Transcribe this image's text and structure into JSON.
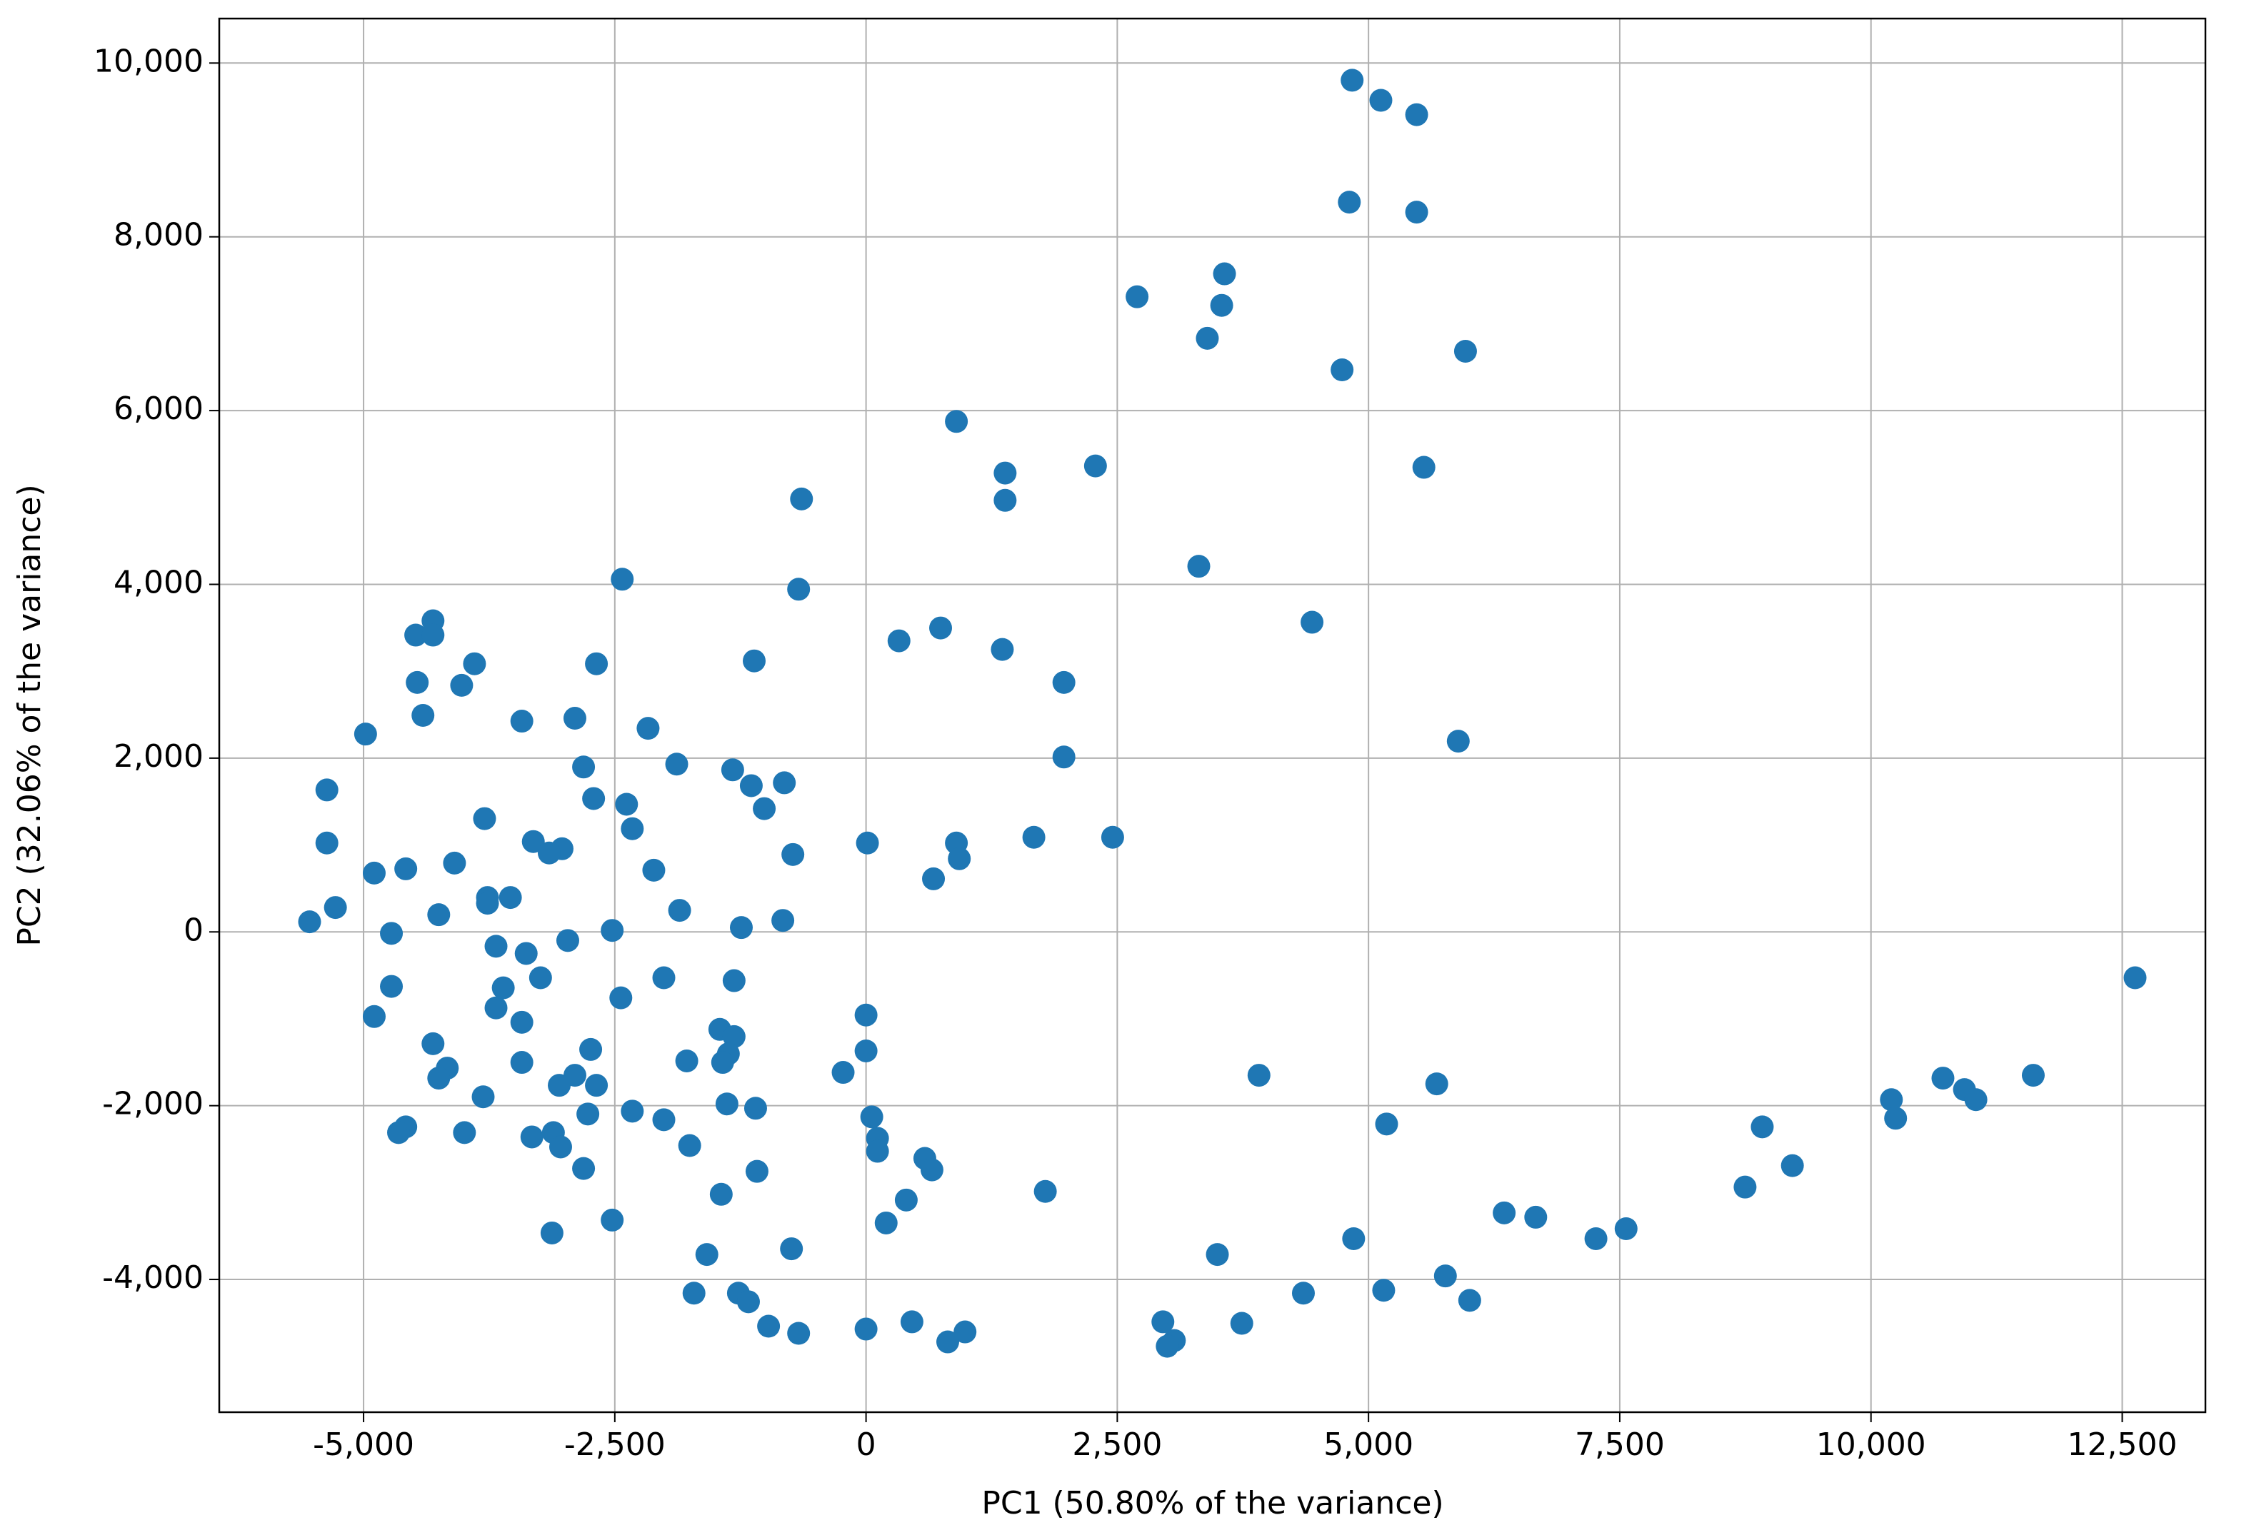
{
  "chart_data": {
    "type": "scatter",
    "x_label": "PC1 (50.80% of the variance)",
    "y_label": "PC2 (32.06% of the variance)",
    "color": "#1f77b4",
    "grid": true,
    "xlim": [
      -6436,
      13328
    ],
    "ylim": [
      -5528,
      10512
    ],
    "xticks": [
      {
        "value": -5000,
        "label": "-5,000"
      },
      {
        "value": -2500,
        "label": "-2,500"
      },
      0,
      {
        "value": 2500,
        "label": "2,500"
      },
      {
        "value": 5000,
        "label": "5,000"
      },
      {
        "value": 7500,
        "label": "7,500"
      },
      {
        "value": 10000,
        "label": "10,000"
      },
      {
        "value": 12500,
        "label": "12,500"
      }
    ],
    "yticks": [
      {
        "value": -4000,
        "label": "-4,000"
      },
      {
        "value": -2000,
        "label": "-2,000"
      },
      0,
      {
        "value": 2000,
        "label": "2,000"
      },
      {
        "value": 4000,
        "label": "4,000"
      },
      {
        "value": 6000,
        "label": "6,000"
      },
      {
        "value": 8000,
        "label": "8,000"
      },
      {
        "value": 10000,
        "label": "10,000"
      }
    ],
    "x": [
      4837,
      5123,
      5479,
      4809,
      5479,
      3567,
      2697,
      3539,
      3396,
      5965,
      4737,
      899,
      1384,
      2283,
      5551,
      1384,
      -642,
      3311,
      -2426,
      -671,
      4438,
      -4309,
      -4481,
      -4309,
      742,
      328,
      1356,
      -1113,
      -2683,
      -3896,
      -4466,
      -4024,
      1969,
      -4409,
      -2897,
      -3425,
      -4980,
      -2169,
      5893,
      1969,
      -1884,
      -2811,
      -1327,
      -813,
      -1142,
      -5365,
      -2711,
      -2383,
      -1013,
      -3796,
      -2326,
      1670,
      2454,
      -5365,
      -3311,
      14,
      899,
      -3025,
      -3153,
      -728,
      928,
      -4095,
      -4580,
      -4894,
      -2112,
      671,
      -3767,
      -3539,
      -3767,
      -5280,
      -1855,
      -4252,
      -5537,
      -828,
      -1241,
      -2526,
      -4723,
      -3682,
      -3382,
      -2968,
      -3239,
      -2012,
      -1313,
      -4723,
      -3610,
      -2440,
      -3682,
      -4894,
      0,
      -3425,
      -1455,
      -1313,
      -4309,
      -2740,
      0,
      -1370,
      -1784,
      -3425,
      -1427,
      -4167,
      -4252,
      -2897,
      -228,
      3910,
      5679,
      -3053,
      -2683,
      -3810,
      -1384,
      -1099,
      -2768,
      -2326,
      57,
      -2012,
      5180,
      8918,
      -4580,
      -4652,
      -3996,
      114,
      -3111,
      -3325,
      -3039,
      -1755,
      114,
      585,
      656,
      9218,
      -2811,
      -1085,
      8747,
      1784,
      -1441,
      400,
      6350,
      6664,
      200,
      -2526,
      7563,
      -3125,
      7263,
      4852,
      -742,
      -1584,
      3496,
      5765,
      -1712,
      4352,
      5151,
      -1270,
      6007,
      -1170,
      2954,
      457,
      3739,
      -970,
      0,
      985,
      -671,
      3068,
      813,
      2997,
      10203,
      10245,
      10716,
      10930,
      11044,
      11615,
      12628
    ],
    "values": [
      9802,
      9571,
      9406,
      8399,
      8284,
      7574,
      7310,
      7211,
      6832,
      6683,
      6469,
      5875,
      5281,
      5363,
      5347,
      4967,
      4983,
      4208,
      4059,
      3944,
      3564,
      3581,
      3416,
      3416,
      3498,
      3350,
      3251,
      3119,
      3086,
      3086,
      2871,
      2838,
      2871,
      2492,
      2459,
      2426,
      2277,
      2343,
      2195,
      2013,
      1931,
      1898,
      1865,
      1716,
      1683,
      1634,
      1535,
      1469,
      1419,
      1304,
      1188,
      1089,
      1089,
      1023,
      1040,
      1023,
      1023,
      957,
      908,
      891,
      842,
      792,
      726,
      677,
      710,
      611,
      396,
      396,
      330,
      281,
      248,
      198,
      116,
      132,
      50,
      17,
      -17,
      -165,
      -248,
      -99,
      -528,
      -528,
      -561,
      -627,
      -644,
      -759,
      -875,
      -974,
      -957,
      -1040,
      -1122,
      -1205,
      -1287,
      -1353,
      -1370,
      -1403,
      -1485,
      -1502,
      -1502,
      -1568,
      -1683,
      -1650,
      -1617,
      -1650,
      -1749,
      -1766,
      -1766,
      -1898,
      -1980,
      -2030,
      -2096,
      -2063,
      -2129,
      -2162,
      -2211,
      -2244,
      -2244,
      -2310,
      -2310,
      -2376,
      -2310,
      -2360,
      -2475,
      -2459,
      -2525,
      -2607,
      -2739,
      -2690,
      -2723,
      -2756,
      -2937,
      -2987,
      -3020,
      -3086,
      -3234,
      -3284,
      -3350,
      -3317,
      -3416,
      -3465,
      -3531,
      -3531,
      -3647,
      -3713,
      -3713,
      -3960,
      -4158,
      -4158,
      -4125,
      -4158,
      -4241,
      -4257,
      -4488,
      -4488,
      -4505,
      -4538,
      -4571,
      -4604,
      -4620,
      -4703,
      -4719,
      -4769,
      -1931,
      -2145,
      -1683,
      -1815,
      -1931,
      -1650,
      -528
    ]
  }
}
